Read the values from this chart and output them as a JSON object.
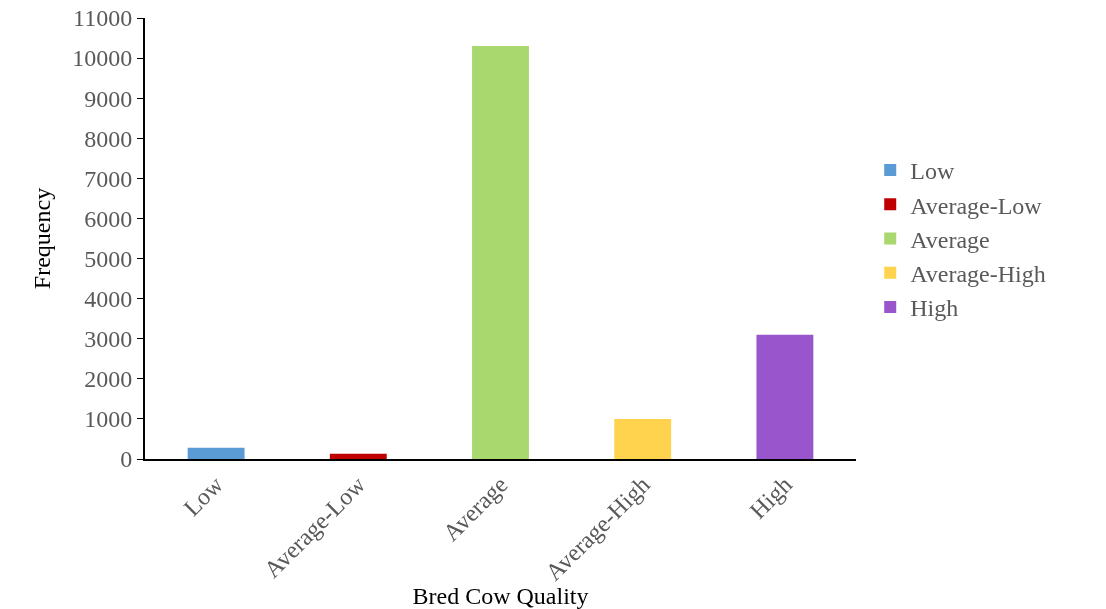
{
  "chart_data": {
    "type": "bar",
    "xlabel": "Bred Cow Quality",
    "ylabel": "Frequency",
    "categories": [
      "Low",
      "Average-Low",
      "Average",
      "Average-High",
      "High"
    ],
    "series": [
      {
        "name": "Low",
        "color": "#5b9bd5",
        "values": [
          280,
          null,
          null,
          null,
          null
        ]
      },
      {
        "name": "Average-Low",
        "color": "#c00000",
        "values": [
          null,
          130,
          null,
          null,
          null
        ]
      },
      {
        "name": "Average",
        "color": "#a9d86e",
        "values": [
          null,
          null,
          10300,
          null,
          null
        ]
      },
      {
        "name": "Average-High",
        "color": "#ffd34d",
        "values": [
          null,
          null,
          null,
          1000,
          null
        ]
      },
      {
        "name": "High",
        "color": "#9955cc",
        "values": [
          null,
          null,
          null,
          null,
          3100
        ]
      }
    ],
    "ylim": [
      0,
      11000
    ],
    "yticks": [
      0,
      1000,
      2000,
      3000,
      4000,
      5000,
      6000,
      7000,
      8000,
      9000,
      10000,
      11000
    ],
    "grid": false,
    "legend": "right"
  }
}
